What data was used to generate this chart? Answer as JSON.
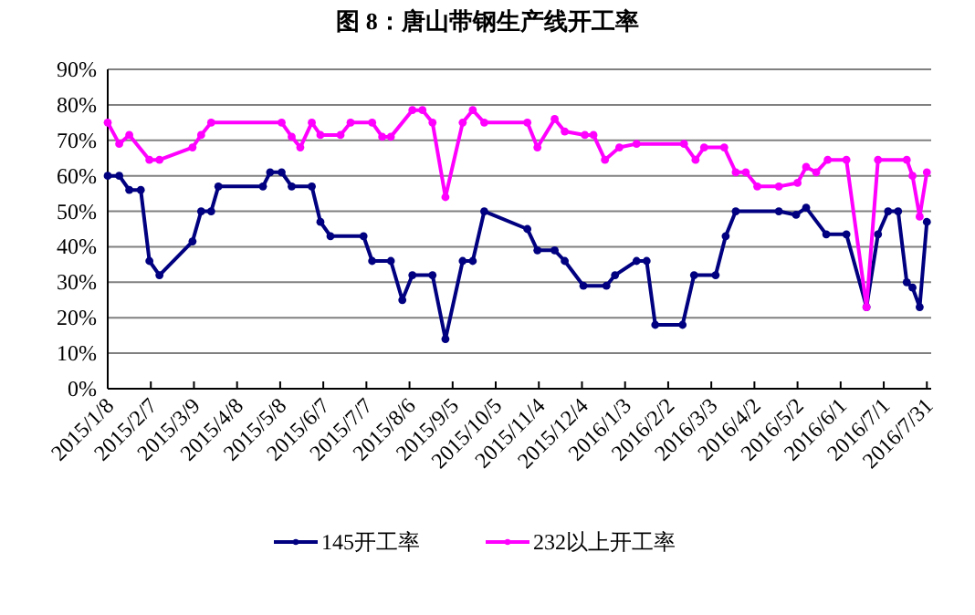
{
  "chart_data": {
    "type": "line",
    "title": "图 8：唐山带钢生产线开工率",
    "xlim": [
      "2015-01-08",
      "2016-08-03"
    ],
    "xticks": [
      {
        "value": "2015-01-08",
        "label": "2015/1/8"
      },
      {
        "value": "2015-02-07",
        "label": "2015/2/7"
      },
      {
        "value": "2015-03-09",
        "label": "2015/3/9"
      },
      {
        "value": "2015-04-08",
        "label": "2015/4/8"
      },
      {
        "value": "2015-05-08",
        "label": "2015/5/8"
      },
      {
        "value": "2015-06-07",
        "label": "2015/6/7"
      },
      {
        "value": "2015-07-07",
        "label": "2015/7/7"
      },
      {
        "value": "2015-08-06",
        "label": "2015/8/6"
      },
      {
        "value": "2015-09-05",
        "label": "2015/9/5"
      },
      {
        "value": "2015-10-05",
        "label": "2015/10/5"
      },
      {
        "value": "2015-11-04",
        "label": "2015/11/4"
      },
      {
        "value": "2015-12-04",
        "label": "2015/12/4"
      },
      {
        "value": "2016-01-03",
        "label": "2016/1/3"
      },
      {
        "value": "2016-02-02",
        "label": "2016/2/2"
      },
      {
        "value": "2016-03-03",
        "label": "2016/3/3"
      },
      {
        "value": "2016-04-02",
        "label": "2016/4/2"
      },
      {
        "value": "2016-05-02",
        "label": "2016/5/2"
      },
      {
        "value": "2016-06-01",
        "label": "2016/6/1"
      },
      {
        "value": "2016-07-01",
        "label": "2016/7/1"
      },
      {
        "value": "2016-07-31",
        "label": "2016/7/31"
      }
    ],
    "ylim": [
      0,
      90
    ],
    "yticks": [
      {
        "value": 0,
        "label": "0%"
      },
      {
        "value": 10,
        "label": "10%"
      },
      {
        "value": 20,
        "label": "20%"
      },
      {
        "value": 30,
        "label": "30%"
      },
      {
        "value": 40,
        "label": "40%"
      },
      {
        "value": 50,
        "label": "50%"
      },
      {
        "value": 60,
        "label": "60%"
      },
      {
        "value": 70,
        "label": "70%"
      },
      {
        "value": 80,
        "label": "80%"
      },
      {
        "value": 90,
        "label": "90%"
      }
    ],
    "grid": "y",
    "legend": "bottom",
    "marker": "circle",
    "line_style": "solid",
    "series": [
      {
        "name": "145开工率",
        "color": "#000080",
        "x": [
          "2015-01-08",
          "2015-01-16",
          "2015-01-23",
          "2015-01-31",
          "2015-02-06",
          "2015-02-13",
          "2015-03-08",
          "2015-03-14",
          "2015-03-21",
          "2015-03-26",
          "2015-04-26",
          "2015-05-01",
          "2015-05-09",
          "2015-05-16",
          "2015-05-30",
          "2015-06-05",
          "2015-06-12",
          "2015-07-05",
          "2015-07-11",
          "2015-07-24",
          "2015-08-01",
          "2015-08-08",
          "2015-08-22",
          "2015-08-31",
          "2015-09-12",
          "2015-09-19",
          "2015-09-27",
          "2015-10-27",
          "2015-11-03",
          "2015-11-15",
          "2015-11-22",
          "2015-12-05",
          "2015-12-21",
          "2015-12-27",
          "2016-01-11",
          "2016-01-18",
          "2016-01-24",
          "2016-02-12",
          "2016-02-20",
          "2016-03-06",
          "2016-03-13",
          "2016-03-20",
          "2016-04-19",
          "2016-05-01",
          "2016-05-08",
          "2016-05-22",
          "2016-06-05",
          "2016-06-19",
          "2016-06-27",
          "2016-07-04",
          "2016-07-11",
          "2016-07-17",
          "2016-07-21",
          "2016-07-26",
          "2016-07-31"
        ],
        "values": [
          60,
          60,
          56,
          56,
          36,
          32,
          41.5,
          50,
          50,
          57,
          57,
          61,
          61,
          57,
          57,
          47,
          43,
          43,
          36,
          36,
          25,
          32,
          32,
          14,
          36,
          36,
          50,
          45,
          39,
          39,
          36,
          29,
          29,
          32,
          36,
          36,
          18,
          18,
          32,
          32,
          43,
          50,
          50,
          49,
          51,
          43.5,
          43.5,
          23,
          43.5,
          50,
          50,
          30,
          28.5,
          23,
          47
        ]
      },
      {
        "name": "232以上开工率",
        "color": "#ff00ff",
        "x": [
          "2015-01-08",
          "2015-01-16",
          "2015-01-23",
          "2015-02-06",
          "2015-02-13",
          "2015-03-08",
          "2015-03-14",
          "2015-03-21",
          "2015-05-09",
          "2015-05-16",
          "2015-05-22",
          "2015-05-30",
          "2015-06-05",
          "2015-06-19",
          "2015-06-26",
          "2015-07-11",
          "2015-07-18",
          "2015-07-24",
          "2015-08-08",
          "2015-08-15",
          "2015-08-22",
          "2015-08-31",
          "2015-09-12",
          "2015-09-19",
          "2015-09-27",
          "2015-10-27",
          "2015-11-03",
          "2015-11-15",
          "2015-11-22",
          "2015-12-06",
          "2015-12-12",
          "2015-12-20",
          "2015-12-30",
          "2016-01-11",
          "2016-02-13",
          "2016-02-21",
          "2016-02-27",
          "2016-03-12",
          "2016-03-20",
          "2016-03-27",
          "2016-04-04",
          "2016-04-19",
          "2016-05-02",
          "2016-05-08",
          "2016-05-15",
          "2016-05-23",
          "2016-06-05",
          "2016-06-19",
          "2016-06-27",
          "2016-07-17",
          "2016-07-21",
          "2016-07-26",
          "2016-07-31"
        ],
        "values": [
          75,
          69,
          71.5,
          64.5,
          64.5,
          68,
          71.5,
          75,
          75,
          71,
          68,
          75,
          71.5,
          71.5,
          75,
          75,
          71,
          71,
          78.5,
          78.5,
          75,
          54,
          75,
          78.5,
          75,
          75,
          68,
          76,
          72.5,
          71.5,
          71.5,
          64.5,
          68,
          69,
          69,
          64.5,
          68,
          68,
          61,
          61,
          57,
          57,
          58,
          62.5,
          61,
          64.5,
          64.5,
          23,
          64.5,
          64.5,
          60,
          48.5,
          61
        ]
      }
    ]
  }
}
